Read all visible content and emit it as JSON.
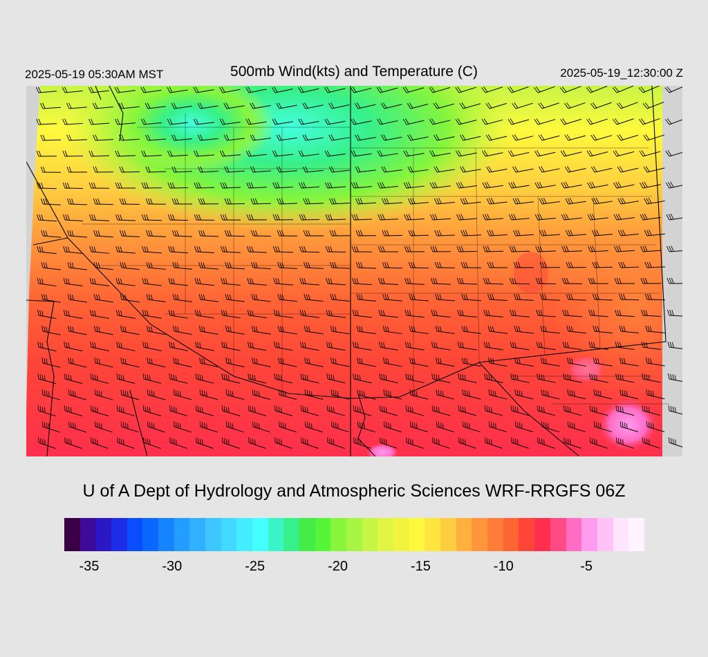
{
  "header": {
    "local_time": "2025-05-19 05:30AM MST",
    "title": "500mb Wind(kts) and Temperature (C)",
    "valid_time": "2025-05-19_12:30:00 Z"
  },
  "footer": {
    "credit": "U of A Dept of Hydrology and Atmospheric Sciences WRF-RRGFS 06Z"
  },
  "colorbar": {
    "colors": [
      "#3c0047",
      "#3d0a9a",
      "#2c17c4",
      "#1e2ee6",
      "#0a4dff",
      "#0a68ff",
      "#1684ff",
      "#239dff",
      "#2fb1ff",
      "#3ec6ff",
      "#41d9ff",
      "#44ecff",
      "#43ffff",
      "#3bf4c7",
      "#37f08a",
      "#45ec45",
      "#56f53a",
      "#86f53c",
      "#a8f543",
      "#c6f545",
      "#e0f544",
      "#f2f33c",
      "#fff93e",
      "#ffe63e",
      "#ffcd40",
      "#ffb03f",
      "#ff963c",
      "#ff7d39",
      "#ff6435",
      "#ff4538",
      "#ff2f4d",
      "#ff4a86",
      "#ff6dc5",
      "#ff9cf0",
      "#ffc2f7",
      "#ffe4ff",
      "#fff3ff"
    ],
    "tick_labels": [
      "-35",
      "-30",
      "-25",
      "-20",
      "-15",
      "-10",
      "-5"
    ],
    "tick_values": [
      -35,
      -30,
      -25,
      -20,
      -15,
      -10,
      -5
    ],
    "range": [
      -36.5,
      -1.5
    ]
  },
  "map": {
    "field": "500mb temperature (C) with wind barbs (kts)",
    "regions": [
      {
        "desc": "north-central cold core",
        "temp_c": -23
      },
      {
        "desc": "northern band",
        "temp_c": -19
      },
      {
        "desc": "middle band",
        "temp_c": -15
      },
      {
        "desc": "south-middle band",
        "temp_c": -12
      },
      {
        "desc": "southern band",
        "temp_c": -9
      },
      {
        "desc": "southeast warm pocket",
        "temp_c": -5
      }
    ],
    "barb_direction": "westerly to southwesterly"
  }
}
